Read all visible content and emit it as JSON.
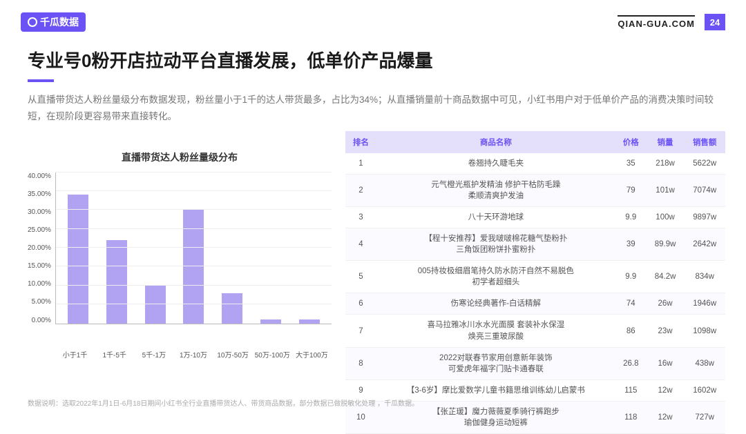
{
  "header": {
    "logo_text": "千瓜数据",
    "site": "QIAN-GUA.COM",
    "page_number": "24"
  },
  "title": "专业号0粉开店拉动平台直播发展，低单价产品爆量",
  "desc": "从直播带货达人粉丝量级分布数据发现，粉丝量小于1千的达人带货最多，占比为34%；从直播销量前十商品数据中可见，小红书用户对于低单价产品的消费决策时间较短，在现阶段更容易带来直接转化。",
  "chart": {
    "type": "bar",
    "title": "直播带货达人粉丝量级分布",
    "categories": [
      "小于1千",
      "1千-5千",
      "5千-1万",
      "1万-10万",
      "10万-50万",
      "50万-100万",
      "大于100万"
    ],
    "values": [
      34,
      22,
      10,
      30,
      8,
      1,
      1
    ],
    "bar_color": "#b1a3f2",
    "ylim_max": 40,
    "ytick_step": 5,
    "y_format_suffix": ".00%",
    "background_color": "#ffffff",
    "grid_color": "#eeeeee",
    "axis_color": "#bbbbbb",
    "label_fontsize": 10,
    "title_fontsize": 14
  },
  "table": {
    "columns": [
      "排名",
      "商品名称",
      "价格",
      "销量",
      "销售额"
    ],
    "header_bg": "#e4dffb",
    "header_color": "#6b52f5",
    "rows": [
      {
        "rank": "1",
        "name": "卷翘持久睫毛夹",
        "price": "35",
        "sales": "218w",
        "revenue": "5622w"
      },
      {
        "rank": "2",
        "name": "元气橙光瓶护发精油 修护干枯防毛躁\n柔顺清爽护发油",
        "price": "79",
        "sales": "101w",
        "revenue": "7074w"
      },
      {
        "rank": "3",
        "name": "八十天环游地球",
        "price": "9.9",
        "sales": "100w",
        "revenue": "9897w"
      },
      {
        "rank": "4",
        "name": "【程十安推荐】爱我啵啵棉花糖气垫粉扑\n三角饭团粉饼扑蜜粉扑",
        "price": "39",
        "sales": "89.9w",
        "revenue": "2642w"
      },
      {
        "rank": "5",
        "name": "005持妆极细眉笔持久防水防汗自然不易脱色\n初学者超细头",
        "price": "9.9",
        "sales": "84.2w",
        "revenue": "834w"
      },
      {
        "rank": "6",
        "name": "伤寒论经典著作-白话精解",
        "price": "74",
        "sales": "26w",
        "revenue": "1946w"
      },
      {
        "rank": "7",
        "name": "喜马拉雅冰川水水光面膜 套装补水保湿\n焕亮三重玻尿酸",
        "price": "86",
        "sales": "23w",
        "revenue": "1098w"
      },
      {
        "rank": "8",
        "name": "2022对联春节家用创意新年装饰\n可爱虎年福字门贴卡通春联",
        "price": "26.8",
        "sales": "16w",
        "revenue": "438w"
      },
      {
        "rank": "9",
        "name": "【3-6岁】摩比爱数学儿童书籍思维训练幼儿启蒙书",
        "price": "115",
        "sales": "12w",
        "revenue": "1602w"
      },
      {
        "rank": "10",
        "name": "【张芷瑗】魔力薇薇夏季骑行裤跑步\n瑜伽健身运动短裤",
        "price": "118",
        "sales": "12w",
        "revenue": "727w"
      }
    ]
  },
  "footnote": "数据说明：选取2022年1月1日-6月18日期间小红书全行业直播带货达人、带货商品数据，部分数据已做脱敏化处理 ，千瓜数据。"
}
